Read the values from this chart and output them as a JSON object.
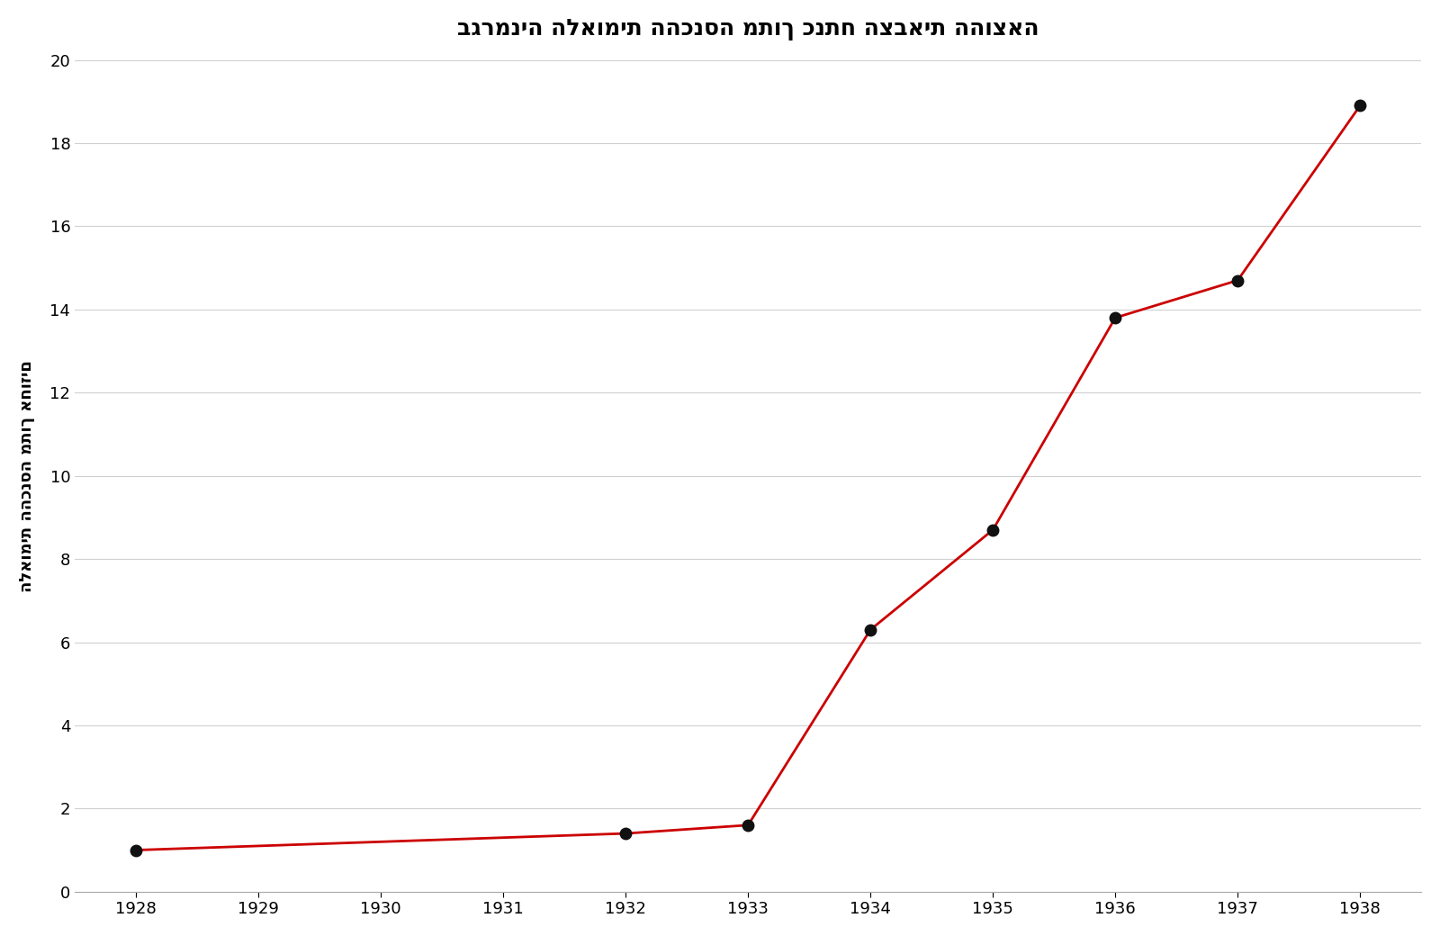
{
  "title": "ההוצאה הצבאית כנתח מתוך ההכנסה הלאומית בגרמניה",
  "ylabel": "אחוזים מתוך ההכנסה הלאומית",
  "x": [
    1928,
    1932,
    1933,
    1934,
    1935,
    1936,
    1937,
    1938
  ],
  "y": [
    1.0,
    1.4,
    1.6,
    6.3,
    8.7,
    13.8,
    14.7,
    18.9
  ],
  "xlim": [
    1927.5,
    1938.5
  ],
  "ylim": [
    0,
    20
  ],
  "xticks": [
    1928,
    1929,
    1930,
    1931,
    1932,
    1933,
    1934,
    1935,
    1936,
    1937,
    1938
  ],
  "yticks": [
    0,
    2,
    4,
    6,
    8,
    10,
    12,
    14,
    16,
    18,
    20
  ],
  "line_color": "#cc0000",
  "marker_color": "#111111",
  "marker_size": 9,
  "line_width": 2.0,
  "background_color": "#ffffff",
  "grid_color": "#d0d0d0",
  "title_fontsize": 18,
  "label_fontsize": 13,
  "tick_fontsize": 13
}
